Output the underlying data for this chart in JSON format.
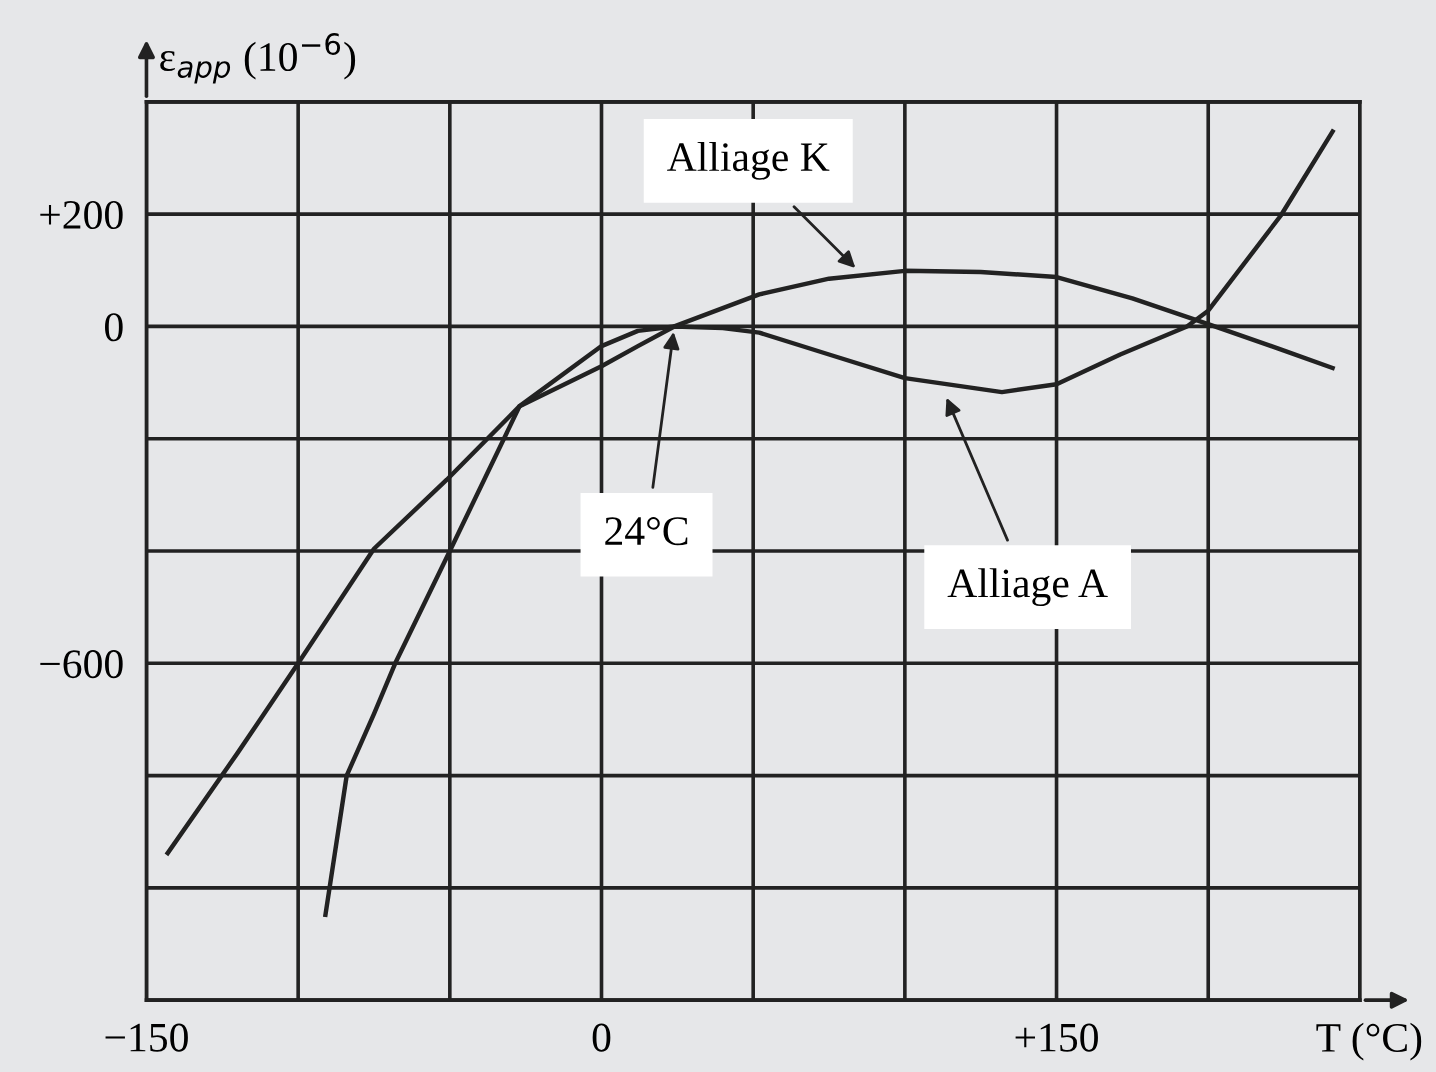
{
  "chart_data": {
    "type": "line",
    "xlabel": "T (°C)",
    "ylabel": "ε$_{app}$ (10$^{−6}$)",
    "series": [
      {
        "color": "#222222",
        "x": [
          -143,
          -120,
          -100,
          -75,
          -51,
          -27,
          0,
          12,
          24,
          52,
          75,
          100,
          125,
          150,
          175,
          200,
          225,
          241
        ],
        "values": [
          -938,
          -760,
          -600,
          -396,
          -273,
          -142,
          -71,
          -35,
          0,
          57,
          85,
          99,
          97,
          88,
          50,
          4,
          -43,
          -74
        ]
      },
      {
        "color": "#222222",
        "x": [
          -91,
          -84,
          -75,
          -68,
          -50,
          -27,
          0,
          12,
          24,
          40,
          52,
          75,
          100,
          132,
          150,
          171,
          193,
          200,
          224,
          241
        ],
        "values": [
          -1048,
          -800,
          -690,
          -600,
          -400,
          -142,
          -35,
          -8,
          0,
          -3,
          -11,
          -50,
          -92,
          -117,
          -103,
          -50,
          0,
          28,
          198,
          347
        ]
      }
    ],
    "annotations": [
      {
        "text": "Alliage K",
        "x": 85,
        "y": 97
      },
      {
        "text": "24°C",
        "x": 24,
        "y": 0
      },
      {
        "text": "Alliage A",
        "x": 113,
        "y": -118
      }
    ],
    "xlim": [
      -150,
      250
    ],
    "ylim": [
      -1200,
      400
    ],
    "xticks": [
      {
        "value": -150,
        "label": "−150"
      },
      {
        "value": -100,
        "label": null
      },
      {
        "value": -50,
        "label": null
      },
      0,
      {
        "value": 50,
        "label": null
      },
      {
        "value": 100,
        "label": null
      },
      {
        "value": 150,
        "label": "+150"
      },
      {
        "value": 200,
        "label": null
      },
      {
        "value": 250,
        "label": null
      }
    ],
    "yticks": [
      {
        "value": -1200,
        "label": null
      },
      {
        "value": -1000,
        "label": null
      },
      {
        "value": -800,
        "label": null
      },
      {
        "value": -600,
        "label": "−600"
      },
      {
        "value": -400,
        "label": null
      },
      {
        "value": -200,
        "label": null
      },
      0,
      {
        "value": 200,
        "label": "+200"
      },
      {
        "value": 400,
        "label": null
      }
    ],
    "grid": true,
    "marker": "none",
    "line_style": "solid"
  }
}
